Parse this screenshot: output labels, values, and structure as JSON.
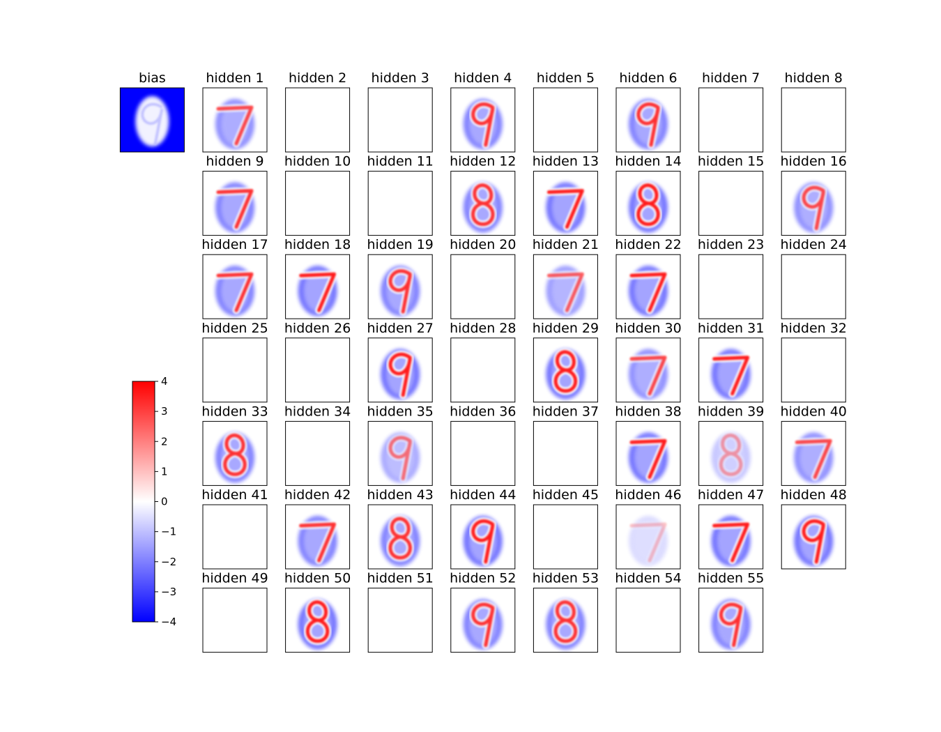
{
  "chart_data": {
    "type": "heatmap",
    "description_free": true,
    "colormap": "bwr",
    "color_range": [
      -4,
      4
    ],
    "colorbar": {
      "ticks": [
        4,
        3,
        2,
        1,
        0,
        -1,
        -2,
        -3,
        -4
      ],
      "tick_labels": [
        "4",
        "3",
        "2",
        "1",
        "0",
        "−1",
        "−2",
        "−3",
        "−4"
      ]
    },
    "bias_panel": {
      "title": "bias",
      "pattern": "blob",
      "digit": "9"
    },
    "panels": [
      {
        "title": "hidden 1",
        "pattern": "digit",
        "digit": "7",
        "strength": 0.8
      },
      {
        "title": "hidden 2",
        "pattern": "blank"
      },
      {
        "title": "hidden 3",
        "pattern": "blank"
      },
      {
        "title": "hidden 4",
        "pattern": "digit",
        "digit": "9",
        "strength": 0.9
      },
      {
        "title": "hidden 5",
        "pattern": "blank"
      },
      {
        "title": "hidden 6",
        "pattern": "digit",
        "digit": "9",
        "strength": 0.9
      },
      {
        "title": "hidden 7",
        "pattern": "blank"
      },
      {
        "title": "hidden 8",
        "pattern": "blank"
      },
      {
        "title": "hidden 9",
        "pattern": "digit",
        "digit": "7",
        "strength": 0.9
      },
      {
        "title": "hidden 10",
        "pattern": "blank"
      },
      {
        "title": "hidden 11",
        "pattern": "blank"
      },
      {
        "title": "hidden 12",
        "pattern": "digit",
        "digit": "8",
        "strength": 0.9
      },
      {
        "title": "hidden 13",
        "pattern": "digit",
        "digit": "7",
        "strength": 1.0
      },
      {
        "title": "hidden 14",
        "pattern": "digit",
        "digit": "8",
        "strength": 1.0
      },
      {
        "title": "hidden 15",
        "pattern": "blank"
      },
      {
        "title": "hidden 16",
        "pattern": "digit",
        "digit": "9",
        "strength": 0.8
      },
      {
        "title": "hidden 17",
        "pattern": "digit",
        "digit": "7",
        "strength": 0.9
      },
      {
        "title": "hidden 18",
        "pattern": "digit",
        "digit": "7",
        "strength": 1.0
      },
      {
        "title": "hidden 19",
        "pattern": "digit",
        "digit": "9",
        "strength": 0.9
      },
      {
        "title": "hidden 20",
        "pattern": "blank"
      },
      {
        "title": "hidden 21",
        "pattern": "digit",
        "digit": "7",
        "strength": 0.7
      },
      {
        "title": "hidden 22",
        "pattern": "digit",
        "digit": "7",
        "strength": 1.0
      },
      {
        "title": "hidden 23",
        "pattern": "blank"
      },
      {
        "title": "hidden 24",
        "pattern": "blank"
      },
      {
        "title": "hidden 25",
        "pattern": "blank"
      },
      {
        "title": "hidden 26",
        "pattern": "blank"
      },
      {
        "title": "hidden 27",
        "pattern": "digit",
        "digit": "9",
        "strength": 1.0
      },
      {
        "title": "hidden 28",
        "pattern": "blank"
      },
      {
        "title": "hidden 29",
        "pattern": "digit",
        "digit": "8",
        "strength": 1.0
      },
      {
        "title": "hidden 30",
        "pattern": "digit",
        "digit": "7",
        "strength": 0.8
      },
      {
        "title": "hidden 31",
        "pattern": "digit",
        "digit": "7",
        "strength": 1.0
      },
      {
        "title": "hidden 32",
        "pattern": "blank"
      },
      {
        "title": "hidden 33",
        "pattern": "digit",
        "digit": "8",
        "strength": 0.9
      },
      {
        "title": "hidden 34",
        "pattern": "blank"
      },
      {
        "title": "hidden 35",
        "pattern": "digit",
        "digit": "9",
        "strength": 0.6
      },
      {
        "title": "hidden 36",
        "pattern": "blank"
      },
      {
        "title": "hidden 37",
        "pattern": "blank"
      },
      {
        "title": "hidden 38",
        "pattern": "digit",
        "digit": "7",
        "strength": 1.0
      },
      {
        "title": "hidden 39",
        "pattern": "digit",
        "digit": "8",
        "strength": 0.4
      },
      {
        "title": "hidden 40",
        "pattern": "digit",
        "digit": "7",
        "strength": 0.8
      },
      {
        "title": "hidden 41",
        "pattern": "blank"
      },
      {
        "title": "hidden 42",
        "pattern": "digit",
        "digit": "7",
        "strength": 0.9
      },
      {
        "title": "hidden 43",
        "pattern": "digit",
        "digit": "8",
        "strength": 0.9
      },
      {
        "title": "hidden 44",
        "pattern": "digit",
        "digit": "9",
        "strength": 1.0
      },
      {
        "title": "hidden 45",
        "pattern": "blank"
      },
      {
        "title": "hidden 46",
        "pattern": "digit",
        "digit": "7",
        "strength": 0.25
      },
      {
        "title": "hidden 47",
        "pattern": "digit",
        "digit": "7",
        "strength": 1.0
      },
      {
        "title": "hidden 48",
        "pattern": "digit",
        "digit": "9",
        "strength": 1.0
      },
      {
        "title": "hidden 49",
        "pattern": "blank"
      },
      {
        "title": "hidden 50",
        "pattern": "digit",
        "digit": "8",
        "strength": 1.0
      },
      {
        "title": "hidden 51",
        "pattern": "blank"
      },
      {
        "title": "hidden 52",
        "pattern": "digit",
        "digit": "9",
        "strength": 0.9
      },
      {
        "title": "hidden 53",
        "pattern": "digit",
        "digit": "8",
        "strength": 0.9
      },
      {
        "title": "hidden 54",
        "pattern": "blank"
      },
      {
        "title": "hidden 55",
        "pattern": "digit",
        "digit": "9",
        "strength": 0.9
      }
    ]
  }
}
